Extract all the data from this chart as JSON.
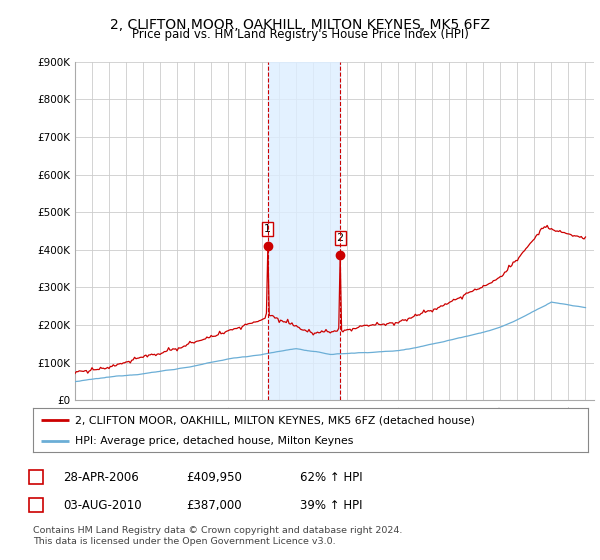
{
  "title": "2, CLIFTON MOOR, OAKHILL, MILTON KEYNES, MK5 6FZ",
  "subtitle": "Price paid vs. HM Land Registry's House Price Index (HPI)",
  "ylim": [
    0,
    900000
  ],
  "yticks": [
    0,
    100000,
    200000,
    300000,
    400000,
    500000,
    600000,
    700000,
    800000,
    900000
  ],
  "ytick_labels": [
    "£0",
    "£100K",
    "£200K",
    "£300K",
    "£400K",
    "£500K",
    "£600K",
    "£700K",
    "£800K",
    "£900K"
  ],
  "xlim_start": 1995.0,
  "xlim_end": 2025.5,
  "xticks": [
    1995,
    1996,
    1997,
    1998,
    1999,
    2000,
    2001,
    2002,
    2003,
    2004,
    2005,
    2006,
    2007,
    2008,
    2009,
    2010,
    2011,
    2012,
    2013,
    2014,
    2015,
    2016,
    2017,
    2018,
    2019,
    2020,
    2021,
    2022,
    2023,
    2024,
    2025
  ],
  "hpi_color": "#6baed6",
  "price_color": "#cc0000",
  "transaction1_x": 2006.32,
  "transaction1_y": 409950,
  "transaction2_x": 2010.58,
  "transaction2_y": 387000,
  "vline_color": "#cc0000",
  "span_color": "#ddeeff",
  "legend_label_price": "2, CLIFTON MOOR, OAKHILL, MILTON KEYNES, MK5 6FZ (detached house)",
  "legend_label_hpi": "HPI: Average price, detached house, Milton Keynes",
  "table_row1": [
    "1",
    "28-APR-2006",
    "£409,950",
    "62% ↑ HPI"
  ],
  "table_row2": [
    "2",
    "03-AUG-2010",
    "£387,000",
    "39% ↑ HPI"
  ],
  "footnote": "Contains HM Land Registry data © Crown copyright and database right 2024.\nThis data is licensed under the Open Government Licence v3.0.",
  "background_color": "#ffffff",
  "grid_color": "#cccccc"
}
